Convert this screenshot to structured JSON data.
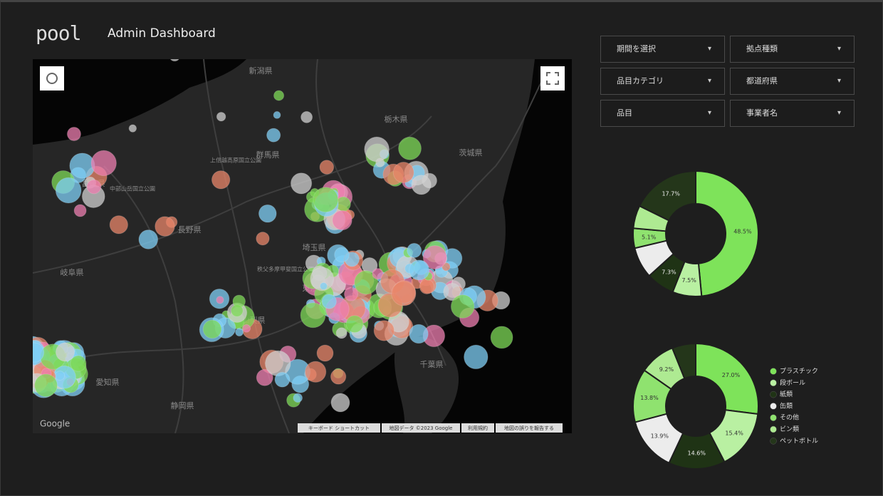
{
  "header": {
    "logo": "pool",
    "title": "Admin Dashboard"
  },
  "filters": [
    "期間を選択",
    "拠点種類",
    "品目カテゴリ",
    "都道府県",
    "品目",
    "事業者名"
  ],
  "map": {
    "place_labels": [
      "新潟県",
      "栃木県",
      "茨城県",
      "群馬県",
      "上信越高原国立公園",
      "富山県",
      "中部山岳国立公園",
      "長野県",
      "埼玉県",
      "秩父多摩甲斐国立公園",
      "岐阜県",
      "山梨県",
      "東京都",
      "千葉県",
      "静岡県",
      "愛知県"
    ],
    "brand": "Google",
    "attribution": [
      "キーボード ショートカット",
      "地図データ ©2023 Google",
      "利用規約",
      "地図の誤りを報告する"
    ]
  },
  "donut_legend": {
    "categories": [
      "プラスチック",
      "段ボール",
      "紙類",
      "缶類",
      "その他",
      "ビン類",
      "ペットボトル"
    ],
    "colors": [
      "#7ee35a",
      "#b9f0a2",
      "#1f3315",
      "#ececec",
      "#8fe26f",
      "#aeea92",
      "#24361a"
    ]
  },
  "donuts": [
    {
      "type": "donut",
      "values": [
        48.5,
        7.5,
        7.3,
        8.0,
        5.1,
        5.9,
        17.7
      ],
      "value_labels": [
        "48.5%",
        "7.5%",
        "7.3%",
        null,
        "5.1%",
        null,
        "17.7%"
      ]
    },
    {
      "type": "donut",
      "values": [
        27.0,
        15.4,
        14.6,
        13.9,
        13.8,
        9.2,
        6.1
      ],
      "value_labels": [
        "27.0%",
        "15.4%",
        "14.6%",
        "13.9%",
        "13.8%",
        "9.2%",
        null
      ]
    }
  ]
}
